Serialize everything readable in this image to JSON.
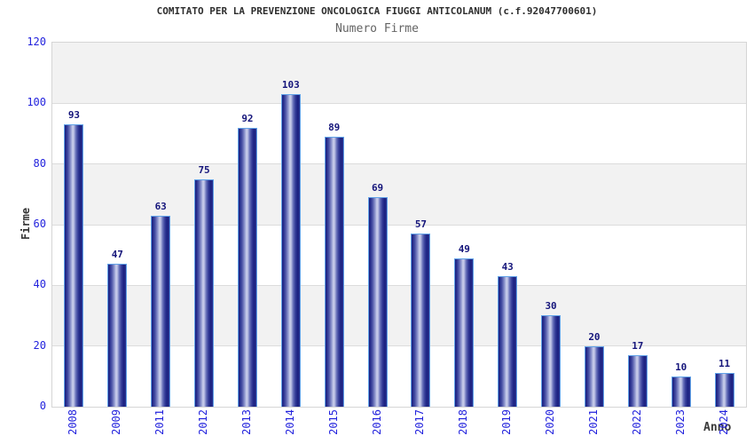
{
  "header": {
    "title": "COMITATO PER LA PREVENZIONE ONCOLOGICA FIUGGI ANTICOLANUM (c.f.92047700601)",
    "subtitle": "Numero Firme"
  },
  "chart_data": {
    "type": "bar",
    "title": "COMITATO PER LA PREVENZIONE ONCOLOGICA FIUGGI ANTICOLANUM (c.f.92047700601)",
    "subtitle": "Numero Firme",
    "xlabel": "Anno",
    "ylabel": "Firme",
    "categories": [
      "2008",
      "2009",
      "2011",
      "2012",
      "2013",
      "2014",
      "2015",
      "2016",
      "2017",
      "2018",
      "2019",
      "2020",
      "2021",
      "2022",
      "2023",
      "2024"
    ],
    "values": [
      93,
      47,
      63,
      75,
      92,
      103,
      89,
      69,
      57,
      49,
      43,
      30,
      20,
      17,
      10,
      11
    ],
    "ylim": [
      0,
      120
    ],
    "yticks": [
      0,
      20,
      40,
      60,
      80,
      100,
      120
    ],
    "grid": "horizontal gridlines every 20 with alternating gray/white bands",
    "legend": "none",
    "bar_labels_shown": true,
    "x_labels_rotated_degrees": -90,
    "colors": {
      "bar_dark": "#1a2080",
      "bar_highlight": "#cdd1ec",
      "bar_border": "#61a2e8",
      "axis_tick_label": "#2222dd",
      "bar_value_label": "#15157b",
      "title": "#2e2e2e",
      "subtitle": "#646464",
      "axis_title": "#333333",
      "band_gray": "#f2f2f2",
      "gridline": "#dcdcdc",
      "plot_border": "#d5d5d5",
      "background": "#ffffff"
    }
  }
}
